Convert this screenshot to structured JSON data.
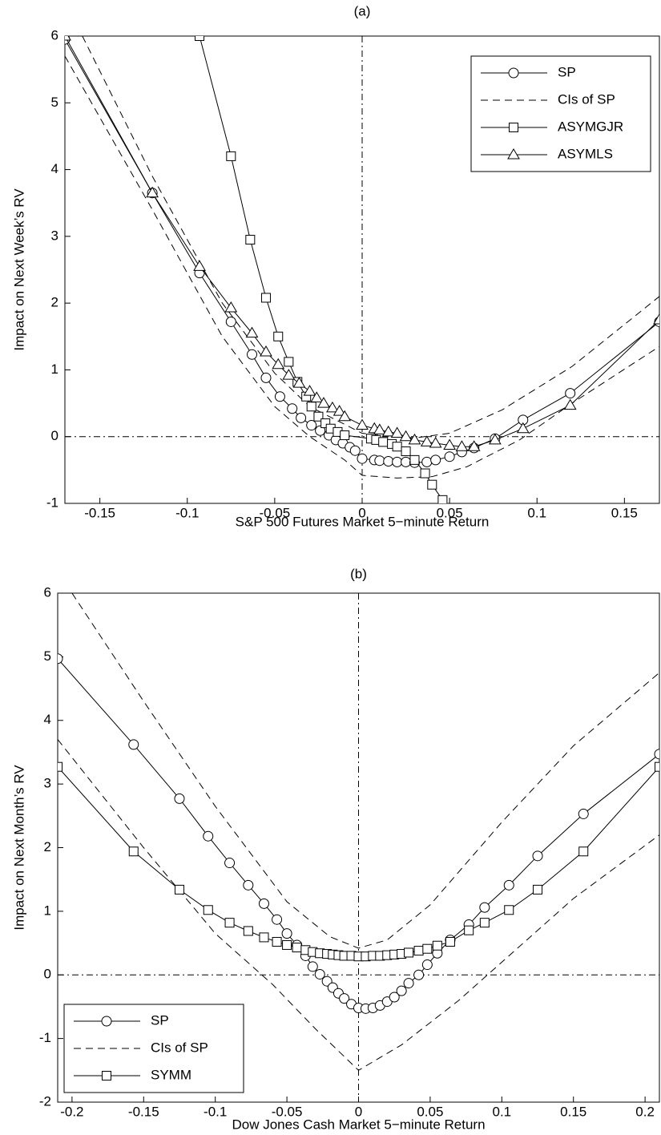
{
  "chart_data": [
    {
      "type": "line",
      "title": "(a)",
      "x_label": "S&P 500 Futures Market 5−minute Return",
      "y_label": "Impact on Next Week’s RV",
      "xlim": [
        -0.17,
        0.17
      ],
      "ylim": [
        -1,
        6
      ],
      "xticks": [
        -0.15,
        -0.1,
        -0.05,
        0,
        0.05,
        0.1,
        0.15
      ],
      "yticks": [
        -1,
        0,
        1,
        2,
        3,
        4,
        5,
        6
      ],
      "zero_lines": true,
      "legend": "upper right",
      "series": [
        {
          "name": "SP",
          "color": "#000000",
          "marker": "circle",
          "dash": "solid",
          "lines": [
            {
              "x": [
                -0.17,
                -0.12,
                -0.093,
                -0.075,
                -0.063,
                -0.055,
                -0.047,
                -0.04,
                -0.035,
                -0.029,
                -0.024,
                -0.019,
                -0.015,
                -0.011,
                -0.007,
                -0.004,
                0.0,
                0.007,
                0.01,
                0.015,
                0.02,
                0.025,
                0.03,
                0.037,
                0.042,
                0.05,
                0.057,
                0.064,
                0.076,
                0.092,
                0.119,
                0.17
              ],
              "values": [
                5.95,
                3.65,
                2.45,
                1.72,
                1.23,
                0.88,
                0.6,
                0.42,
                0.28,
                0.17,
                0.09,
                0.02,
                -0.05,
                -0.1,
                -0.16,
                -0.21,
                -0.33,
                -0.35,
                -0.36,
                -0.37,
                -0.38,
                -0.38,
                -0.39,
                -0.38,
                -0.35,
                -0.3,
                -0.23,
                -0.17,
                -0.03,
                0.25,
                0.65,
                1.72
              ]
            }
          ]
        },
        {
          "name": "CIs of SP",
          "color": "#000000",
          "marker": "none",
          "dash": "dashed",
          "lines": [
            {
              "x": [
                -0.16,
                -0.12,
                -0.08,
                -0.05,
                -0.03,
                0,
                0.03,
                0.05,
                0.08,
                0.12,
                0.17
              ],
              "values": [
                6,
                3.9,
                2.0,
                0.95,
                0.45,
                0.05,
                -0.02,
                0.05,
                0.4,
                1.05,
                2.1
              ]
            },
            {
              "x": [
                -0.17,
                -0.12,
                -0.08,
                -0.05,
                -0.03,
                -0.01,
                0,
                0.02,
                0.04,
                0.06,
                0.09,
                0.12,
                0.17
              ],
              "values": [
                5.7,
                3.4,
                1.5,
                0.45,
                0.0,
                -0.35,
                -0.58,
                -0.62,
                -0.6,
                -0.45,
                -0.05,
                0.5,
                1.35
              ]
            }
          ]
        },
        {
          "name": "ASYMGJR",
          "color": "#000000",
          "marker": "square",
          "dash": "solid",
          "lines": [
            {
              "x": [
                -0.093,
                -0.075,
                -0.064,
                -0.055,
                -0.048,
                -0.042,
                -0.037,
                -0.032,
                -0.029,
                -0.025,
                -0.021,
                -0.018,
                -0.014,
                -0.01,
                0.005,
                0.008,
                0.012,
                0.017,
                0.02,
                0.025,
                0.03,
                0.036,
                0.04,
                0.046
              ],
              "values": [
                6,
                4.2,
                2.95,
                2.08,
                1.5,
                1.12,
                0.82,
                0.6,
                0.45,
                0.3,
                0.2,
                0.12,
                0.07,
                0.02,
                -0.03,
                -0.05,
                -0.08,
                -0.11,
                -0.15,
                -0.22,
                -0.35,
                -0.55,
                -0.72,
                -0.95
              ]
            }
          ]
        },
        {
          "name": "ASYMLS",
          "color": "#000000",
          "marker": "triangle",
          "dash": "solid",
          "lines": [
            {
              "x": [
                -0.17,
                -0.12,
                -0.093,
                -0.075,
                -0.063,
                -0.055,
                -0.048,
                -0.042,
                -0.036,
                -0.03,
                -0.026,
                -0.022,
                -0.017,
                -0.013,
                -0.01,
                0.0,
                0.007,
                0.01,
                0.015,
                0.02,
                0.025,
                0.03,
                0.037,
                0.042,
                0.05,
                0.057,
                0.064,
                0.076,
                0.092,
                0.119,
                0.17
              ],
              "values": [
                6,
                3.65,
                2.55,
                1.93,
                1.55,
                1.27,
                1.08,
                0.92,
                0.8,
                0.68,
                0.58,
                0.5,
                0.43,
                0.38,
                0.3,
                0.17,
                0.12,
                0.1,
                0.07,
                0.05,
                0.0,
                -0.05,
                -0.08,
                -0.1,
                -0.13,
                -0.15,
                -0.15,
                -0.05,
                0.12,
                0.47,
                1.75
              ]
            }
          ]
        }
      ]
    },
    {
      "type": "line",
      "title": "(b)",
      "x_label": "Dow Jones Cash Market 5−minute Return",
      "y_label": "Impact on Next Month’s RV",
      "xlim": [
        -0.21,
        0.21
      ],
      "ylim": [
        -2,
        6
      ],
      "xticks": [
        -0.2,
        -0.15,
        -0.1,
        -0.05,
        0,
        0.05,
        0.1,
        0.15,
        0.2
      ],
      "yticks": [
        -2,
        -1,
        0,
        1,
        2,
        3,
        4,
        5,
        6
      ],
      "zero_lines": true,
      "legend": "lower left",
      "series": [
        {
          "name": "SP",
          "color": "#000000",
          "marker": "circle",
          "dash": "solid",
          "lines": [
            {
              "x": [
                -0.21,
                -0.157,
                -0.125,
                -0.105,
                -0.09,
                -0.077,
                -0.066,
                -0.057,
                -0.05,
                -0.043,
                -0.037,
                -0.032,
                -0.027,
                -0.022,
                -0.018,
                -0.014,
                -0.01,
                -0.005,
                0,
                0.005,
                0.01,
                0.015,
                0.02,
                0.025,
                0.03,
                0.035,
                0.042,
                0.048,
                0.055,
                0.064,
                0.077,
                0.088,
                0.105,
                0.125,
                0.157,
                0.21
              ],
              "values": [
                4.97,
                3.62,
                2.77,
                2.18,
                1.76,
                1.41,
                1.12,
                0.87,
                0.65,
                0.47,
                0.3,
                0.13,
                0.01,
                -0.1,
                -0.2,
                -0.29,
                -0.37,
                -0.46,
                -0.52,
                -0.53,
                -0.52,
                -0.48,
                -0.42,
                -0.35,
                -0.25,
                -0.13,
                0.0,
                0.16,
                0.34,
                0.55,
                0.79,
                1.06,
                1.41,
                1.87,
                2.53,
                3.47
              ]
            }
          ]
        },
        {
          "name": "CIs of SP",
          "color": "#000000",
          "marker": "none",
          "dash": "dashed",
          "lines": [
            {
              "x": [
                -0.2,
                -0.15,
                -0.1,
                -0.05,
                -0.02,
                0,
                0.02,
                0.05,
                0.1,
                0.15,
                0.21
              ],
              "values": [
                6.0,
                4.3,
                2.65,
                1.15,
                0.6,
                0.42,
                0.55,
                1.1,
                2.4,
                3.6,
                4.75
              ]
            },
            {
              "x": [
                -0.21,
                -0.15,
                -0.1,
                -0.06,
                -0.03,
                0,
                0.03,
                0.07,
                0.1,
                0.15,
                0.21
              ],
              "values": [
                3.7,
                2.0,
                0.65,
                -0.15,
                -0.85,
                -1.5,
                -1.1,
                -0.4,
                0.2,
                1.2,
                2.2
              ]
            }
          ]
        },
        {
          "name": "SYMM",
          "color": "#000000",
          "marker": "square",
          "dash": "solid",
          "lines": [
            {
              "x": [
                -0.21,
                -0.157,
                -0.125,
                -0.105,
                -0.09,
                -0.077,
                -0.066,
                -0.057,
                -0.05,
                -0.043,
                -0.037,
                -0.032,
                -0.027,
                -0.022,
                -0.018,
                -0.014,
                -0.01,
                -0.005,
                0,
                0.005,
                0.01,
                0.015,
                0.02,
                0.025,
                0.03,
                0.035,
                0.042,
                0.048,
                0.055,
                0.064,
                0.077,
                0.088,
                0.105,
                0.125,
                0.157,
                0.21
              ],
              "values": [
                3.27,
                1.94,
                1.34,
                1.02,
                0.82,
                0.69,
                0.59,
                0.52,
                0.47,
                0.43,
                0.39,
                0.36,
                0.34,
                0.33,
                0.32,
                0.31,
                0.3,
                0.3,
                0.29,
                0.29,
                0.3,
                0.3,
                0.31,
                0.32,
                0.33,
                0.35,
                0.38,
                0.41,
                0.46,
                0.52,
                0.7,
                0.82,
                1.02,
                1.34,
                1.94,
                3.27
              ]
            }
          ]
        }
      ]
    }
  ]
}
